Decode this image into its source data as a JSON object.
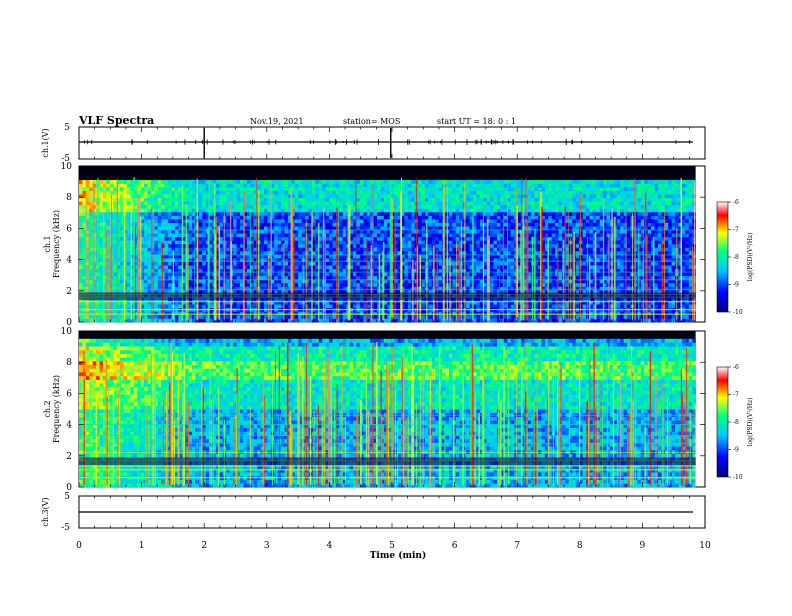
{
  "header": {
    "title": "VLF Spectra",
    "date": "Nov.19, 2021",
    "station": "station= MOS",
    "start": "start  UT =  18: 0  : 1"
  },
  "chart_data": [
    {
      "type": "line",
      "id": "ch1-waveform",
      "ylabel": "ch.1(V)",
      "ylim": [
        -5,
        5
      ],
      "yticks": [
        "5",
        "-5"
      ],
      "xlim": [
        0,
        10
      ],
      "trace_level": 0
    },
    {
      "type": "heatmap",
      "id": "ch1-spectrogram",
      "ylabel": "ch.1\nFrequency (kHz)",
      "ylim": [
        0,
        10
      ],
      "yticks": [
        "0",
        "2",
        "4",
        "6",
        "8",
        "10"
      ],
      "xlim": [
        0,
        9.85
      ],
      "colorbar": {
        "label": "log(PSD)(V²/Hz)",
        "range": [
          -10,
          -6
        ],
        "ticks": [
          "-6",
          "-7",
          "-8",
          "-9",
          "-10"
        ]
      }
    },
    {
      "type": "heatmap",
      "id": "ch2-spectrogram",
      "ylabel": "ch.2\nFrequency (kHz)",
      "ylim": [
        0,
        10
      ],
      "yticks": [
        "0",
        "2",
        "4",
        "6",
        "8",
        "10"
      ],
      "xlim": [
        0,
        9.85
      ],
      "colorbar": {
        "label": "log(PSD)(V²/Hz)",
        "range": [
          -10,
          -6
        ],
        "ticks": [
          "-6",
          "-7",
          "-8",
          "-9",
          "-10"
        ]
      }
    },
    {
      "type": "line",
      "id": "ch3-waveform",
      "ylabel": "ch.3(V)",
      "ylim": [
        -5,
        5
      ],
      "yticks": [
        "5",
        "-5"
      ],
      "xlim": [
        0,
        10
      ],
      "trace_level": 0
    }
  ],
  "xaxis": {
    "label": "Time  (min)",
    "ticks": [
      "0",
      "1",
      "2",
      "3",
      "4",
      "5",
      "6",
      "7",
      "8",
      "9",
      "10"
    ],
    "range": [
      0,
      10
    ]
  },
  "colors": {
    "colormap": [
      "#000080",
      "#0000ff",
      "#00c8ff",
      "#00ff80",
      "#ffff00",
      "#ff0000",
      "#ffffff"
    ]
  }
}
